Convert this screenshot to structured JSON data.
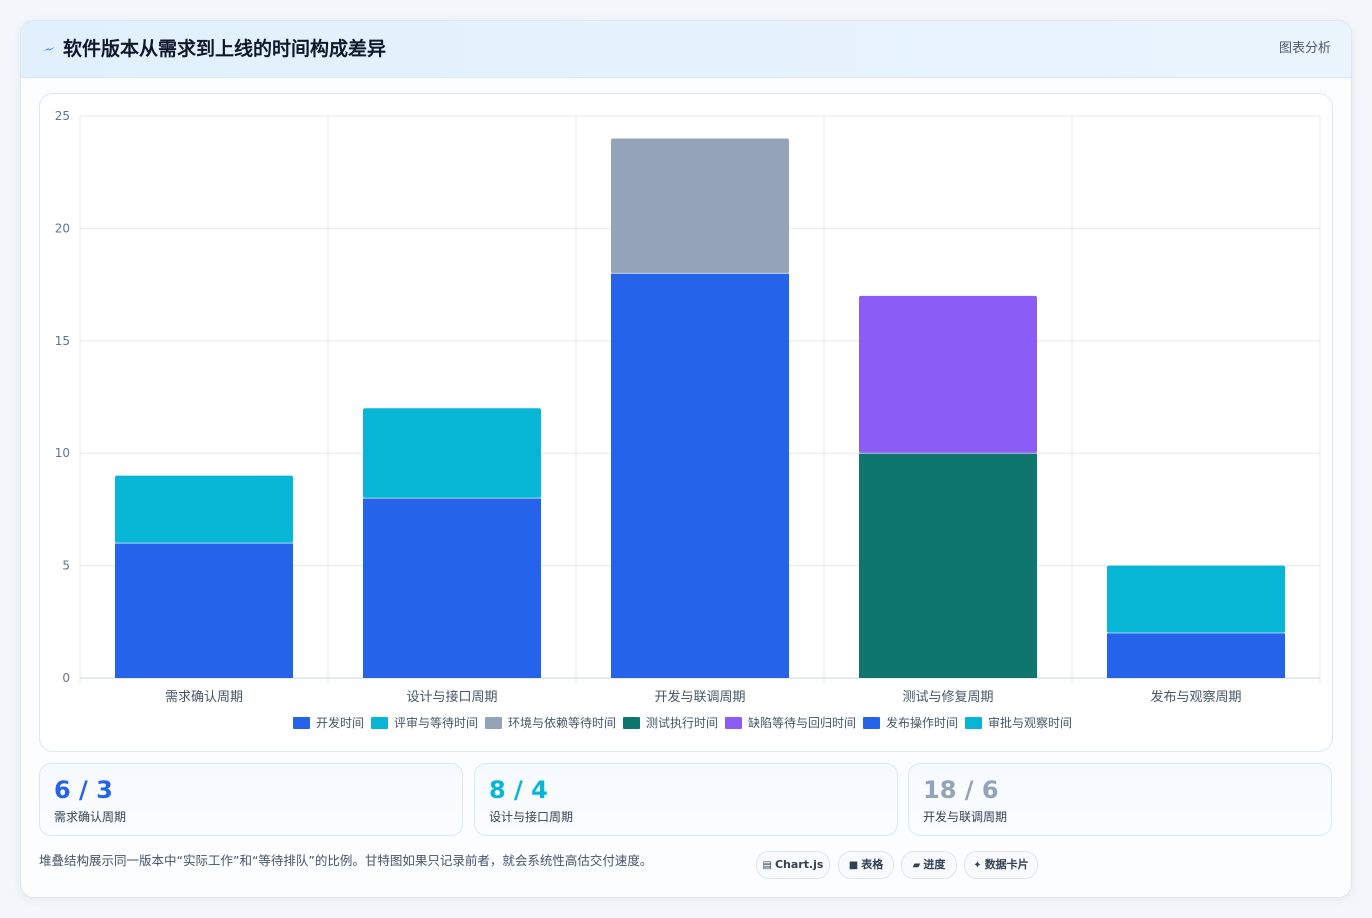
{
  "header": {
    "title": "软件版本从需求到上线的时间构成差异",
    "tag": "图表分析",
    "icon": "lightning-icon"
  },
  "chart_data": {
    "type": "bar",
    "stacked": true,
    "categories": [
      "需求确认周期",
      "设计与接口周期",
      "开发与联调周期",
      "测试与修复周期",
      "发布与观察周期"
    ],
    "ylim": [
      0,
      25
    ],
    "yticks": [
      0,
      5,
      10,
      15,
      20,
      25
    ],
    "legend_position": "bottom",
    "grid": true,
    "series": [
      {
        "name": "开发时间",
        "color": "#2563eb",
        "values": [
          6,
          8,
          18,
          null,
          null
        ]
      },
      {
        "name": "评审与等待时间",
        "color": "#06b6d4",
        "values": [
          3,
          4,
          null,
          null,
          null
        ]
      },
      {
        "name": "环境与依赖等待时间",
        "color": "#94a3b8",
        "values": [
          null,
          null,
          6,
          null,
          null
        ]
      },
      {
        "name": "测试执行时间",
        "color": "#0f766e",
        "values": [
          null,
          null,
          null,
          10,
          null
        ]
      },
      {
        "name": "缺陷等待与回归时间",
        "color": "#8b5cf6",
        "values": [
          null,
          null,
          null,
          7,
          null
        ]
      },
      {
        "name": "发布操作时间",
        "color": "#2563eb",
        "values": [
          null,
          null,
          null,
          null,
          2
        ]
      },
      {
        "name": "审批与观察时间",
        "color": "#06b6d4",
        "values": [
          null,
          null,
          null,
          null,
          3
        ]
      }
    ]
  },
  "stats": [
    {
      "value": "6 / 3",
      "label": "需求确认周期",
      "color": "#2563eb"
    },
    {
      "value": "8 / 4",
      "label": "设计与接口周期",
      "color": "#06b6d4"
    },
    {
      "value": "18 / 6",
      "label": "开发与联调周期",
      "color": "#94a3b8"
    }
  ],
  "footer": {
    "note": "堆叠结构展示同一版本中“实际工作”和“等待排队”的比例。甘特图如果只记录前者，就会系统性高估交付速度。",
    "chips": [
      {
        "icon": "chart-icon",
        "glyph": "▤",
        "label": "Chart.js"
      },
      {
        "icon": "table-icon",
        "glyph": "■",
        "label": "表格"
      },
      {
        "icon": "progress-icon",
        "glyph": "▰",
        "label": "进度"
      },
      {
        "icon": "sparkle-icon",
        "glyph": "✦",
        "label": "数据卡片"
      }
    ]
  }
}
